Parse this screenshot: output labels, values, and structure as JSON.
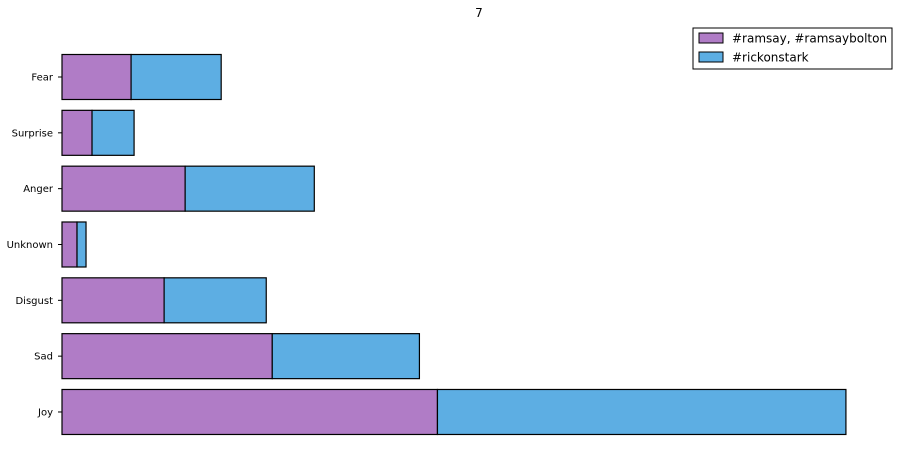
{
  "chart_data": {
    "type": "bar",
    "orientation": "horizontal",
    "stacked": true,
    "title": "7",
    "xlabel": "",
    "ylabel": "",
    "categories": [
      "Fear",
      "Surprise",
      "Anger",
      "Unknown",
      "Disgust",
      "Sad",
      "Joy"
    ],
    "series": [
      {
        "name": "#ramsay, #ramsaybolton",
        "color": "#b07cc6",
        "values": [
          23,
          10,
          41,
          5,
          34,
          70,
          125
        ]
      },
      {
        "name": "#rickonstark",
        "color": "#5daee3",
        "values": [
          30,
          14,
          43,
          3,
          34,
          49,
          136
        ]
      }
    ],
    "xlim": [
      0,
      280
    ],
    "x_axis_visible": false,
    "grid": false,
    "legend_position": "top-right"
  }
}
